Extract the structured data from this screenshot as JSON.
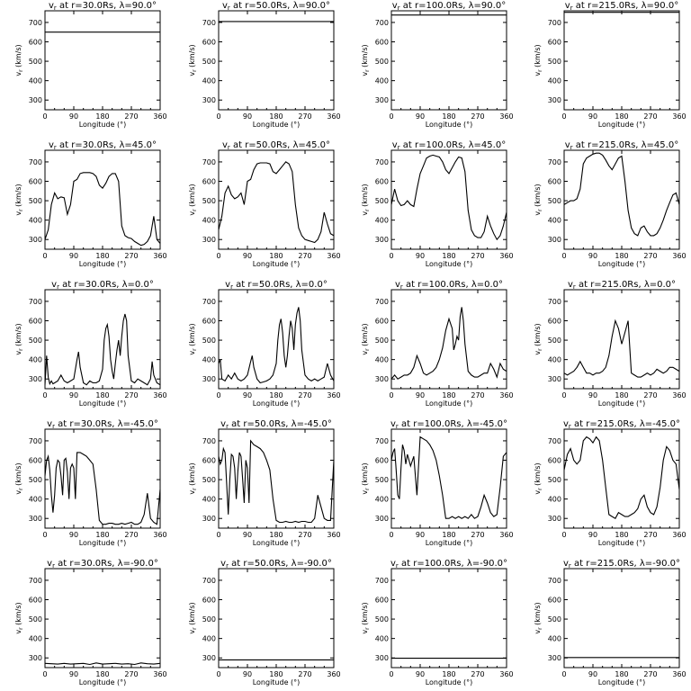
{
  "chart_data": {
    "type": "line",
    "layout": "5 rows x 4 columns of panels",
    "title_template": "v_r at r={r}Rs, λ={lat}°",
    "xlabel": "Longitude (°)",
    "ylabel": "v_r (km/s)",
    "xlim": [
      0,
      360
    ],
    "ylim": [
      250,
      760
    ],
    "xticks": [
      "0",
      "90",
      "180",
      "270",
      "360"
    ],
    "yticks": [
      "300",
      "400",
      "500",
      "600",
      "700"
    ],
    "line_color": "#000000",
    "grid": false,
    "columns_r": [
      "30.0",
      "50.0",
      "100.0",
      "215.0"
    ],
    "rows_lat": [
      "90.0",
      "45.0",
      "0.0",
      "-45.0",
      "-90.0"
    ],
    "panels": [
      {
        "title": "v_r at r=30.0Rs, λ=90.0°",
        "r": "30.0",
        "lat": "90.0",
        "x": [
          0,
          360
        ],
        "y": [
          650,
          650
        ]
      },
      {
        "title": "v_r at r=50.0Rs, λ=90.0°",
        "r": "50.0",
        "lat": "90.0",
        "x": [
          0,
          360
        ],
        "y": [
          705,
          705
        ]
      },
      {
        "title": "v_r at r=100.0Rs, λ=90.0°",
        "r": "100.0",
        "lat": "90.0",
        "x": [
          0,
          360
        ],
        "y": [
          738,
          738
        ]
      },
      {
        "title": "v_r at r=215.0Rs, λ=90.0°",
        "r": "215.0",
        "lat": "90.0",
        "x": [
          0,
          360
        ],
        "y": [
          752,
          752
        ]
      },
      {
        "title": "v_r at r=30.0Rs, λ=45.0°",
        "r": "30.0",
        "lat": "45.0",
        "x": [
          0,
          10,
          20,
          30,
          40,
          50,
          60,
          70,
          80,
          90,
          100,
          110,
          120,
          130,
          140,
          150,
          160,
          170,
          180,
          190,
          200,
          210,
          220,
          230,
          240,
          250,
          260,
          270,
          280,
          290,
          300,
          310,
          320,
          330,
          340,
          350,
          360
        ],
        "y": [
          300,
          350,
          480,
          540,
          510,
          520,
          515,
          430,
          480,
          600,
          610,
          640,
          645,
          645,
          645,
          640,
          625,
          580,
          565,
          590,
          625,
          640,
          640,
          600,
          370,
          320,
          310,
          305,
          290,
          280,
          270,
          275,
          290,
          320,
          420,
          300,
          280
        ]
      },
      {
        "title": "v_r at r=50.0Rs, λ=45.0°",
        "r": "50.0",
        "lat": "45.0",
        "x": [
          0,
          10,
          20,
          30,
          40,
          50,
          60,
          70,
          80,
          90,
          100,
          110,
          120,
          130,
          140,
          150,
          160,
          170,
          180,
          190,
          200,
          210,
          220,
          230,
          240,
          250,
          260,
          270,
          280,
          290,
          300,
          310,
          320,
          330,
          340,
          350,
          360
        ],
        "y": [
          350,
          420,
          540,
          575,
          530,
          510,
          520,
          540,
          480,
          600,
          610,
          660,
          690,
          695,
          695,
          695,
          690,
          650,
          640,
          660,
          680,
          700,
          690,
          650,
          480,
          360,
          320,
          300,
          295,
          290,
          285,
          300,
          340,
          440,
          380,
          330,
          320
        ]
      },
      {
        "title": "v_r at r=100.0Rs, λ=45.0°",
        "r": "100.0",
        "lat": "45.0",
        "x": [
          0,
          10,
          20,
          30,
          40,
          50,
          60,
          70,
          80,
          90,
          100,
          110,
          120,
          130,
          140,
          150,
          160,
          170,
          180,
          190,
          200,
          210,
          220,
          230,
          240,
          250,
          260,
          270,
          280,
          290,
          300,
          310,
          320,
          330,
          340,
          350,
          360
        ],
        "y": [
          480,
          560,
          500,
          475,
          480,
          500,
          480,
          470,
          560,
          640,
          680,
          720,
          730,
          735,
          730,
          725,
          700,
          660,
          640,
          670,
          700,
          725,
          720,
          650,
          450,
          350,
          320,
          310,
          310,
          340,
          420,
          370,
          330,
          300,
          320,
          370,
          440
        ]
      },
      {
        "title": "v_r at r=215.0Rs, λ=45.0°",
        "r": "215.0",
        "lat": "45.0",
        "x": [
          0,
          10,
          20,
          30,
          40,
          50,
          60,
          70,
          80,
          90,
          100,
          110,
          120,
          130,
          140,
          150,
          160,
          170,
          180,
          190,
          200,
          210,
          220,
          230,
          240,
          250,
          260,
          270,
          280,
          290,
          300,
          310,
          320,
          330,
          340,
          350,
          360
        ],
        "y": [
          480,
          490,
          500,
          500,
          510,
          560,
          690,
          720,
          730,
          740,
          745,
          745,
          735,
          710,
          680,
          660,
          690,
          720,
          730,
          600,
          450,
          360,
          330,
          320,
          360,
          370,
          340,
          320,
          320,
          330,
          360,
          400,
          450,
          490,
          530,
          540,
          480
        ]
      },
      {
        "title": "v_r at r=30.0Rs, λ=0.0°",
        "r": "30.0",
        "lat": "0.0",
        "x": [
          0,
          5,
          10,
          15,
          20,
          25,
          30,
          40,
          50,
          60,
          70,
          80,
          90,
          100,
          105,
          110,
          120,
          130,
          140,
          150,
          160,
          170,
          180,
          185,
          190,
          195,
          200,
          205,
          210,
          215,
          220,
          225,
          230,
          235,
          240,
          245,
          250,
          255,
          260,
          270,
          280,
          290,
          300,
          310,
          320,
          330,
          335,
          340,
          350,
          360
        ],
        "y": [
          270,
          420,
          310,
          275,
          290,
          275,
          280,
          290,
          320,
          290,
          280,
          290,
          300,
          400,
          440,
          360,
          280,
          270,
          290,
          280,
          280,
          290,
          350,
          500,
          560,
          580,
          520,
          400,
          340,
          300,
          380,
          450,
          500,
          420,
          520,
          600,
          635,
          600,
          420,
          290,
          280,
          300,
          290,
          280,
          270,
          300,
          390,
          320,
          280,
          270
        ]
      },
      {
        "title": "v_r at r=50.0Rs, λ=0.0°",
        "r": "50.0",
        "lat": "0.0",
        "x": [
          0,
          5,
          10,
          20,
          30,
          40,
          50,
          60,
          70,
          80,
          90,
          100,
          105,
          110,
          120,
          130,
          140,
          150,
          160,
          170,
          180,
          185,
          190,
          195,
          200,
          205,
          210,
          215,
          220,
          225,
          230,
          235,
          240,
          245,
          250,
          255,
          260,
          270,
          280,
          290,
          300,
          310,
          320,
          330,
          340,
          350,
          360
        ],
        "y": [
          380,
          400,
          300,
          290,
          320,
          300,
          330,
          300,
          290,
          300,
          320,
          390,
          420,
          360,
          300,
          280,
          285,
          290,
          300,
          320,
          380,
          500,
          580,
          610,
          540,
          420,
          360,
          420,
          520,
          600,
          560,
          450,
          580,
          640,
          670,
          600,
          450,
          320,
          300,
          290,
          300,
          290,
          300,
          310,
          380,
          320,
          290
        ]
      },
      {
        "title": "v_r at r=100.0Rs, λ=0.0°",
        "r": "100.0",
        "lat": "0.0",
        "x": [
          0,
          10,
          20,
          30,
          40,
          50,
          60,
          70,
          80,
          90,
          100,
          110,
          120,
          130,
          140,
          150,
          160,
          170,
          180,
          190,
          195,
          200,
          205,
          210,
          215,
          220,
          225,
          230,
          240,
          250,
          260,
          270,
          280,
          290,
          300,
          310,
          320,
          330,
          340,
          350,
          360
        ],
        "y": [
          300,
          320,
          300,
          310,
          320,
          320,
          330,
          360,
          420,
          380,
          330,
          320,
          330,
          340,
          360,
          400,
          460,
          550,
          610,
          560,
          450,
          480,
          520,
          500,
          620,
          670,
          600,
          480,
          340,
          320,
          310,
          310,
          320,
          330,
          330,
          380,
          350,
          310,
          380,
          350,
          340
        ]
      },
      {
        "title": "v_r at r=215.0Rs, λ=0.0°",
        "r": "215.0",
        "lat": "0.0",
        "x": [
          0,
          10,
          20,
          30,
          40,
          50,
          60,
          70,
          80,
          90,
          100,
          110,
          120,
          130,
          140,
          150,
          160,
          170,
          180,
          190,
          200,
          210,
          220,
          230,
          240,
          250,
          260,
          270,
          280,
          290,
          300,
          310,
          320,
          330,
          340,
          350,
          360
        ],
        "y": [
          330,
          320,
          330,
          340,
          360,
          390,
          360,
          330,
          330,
          320,
          330,
          330,
          340,
          360,
          420,
          520,
          600,
          560,
          480,
          540,
          600,
          330,
          320,
          310,
          310,
          320,
          330,
          320,
          330,
          350,
          340,
          330,
          340,
          360,
          360,
          350,
          340
        ]
      },
      {
        "title": "v_r at r=30.0Rs, λ=-45.0°",
        "r": "30.0",
        "lat": "-45.0",
        "x": [
          0,
          5,
          10,
          15,
          20,
          25,
          30,
          35,
          40,
          45,
          50,
          55,
          60,
          65,
          70,
          75,
          80,
          85,
          90,
          95,
          100,
          110,
          120,
          130,
          140,
          150,
          160,
          170,
          180,
          190,
          200,
          210,
          220,
          230,
          240,
          250,
          260,
          270,
          280,
          290,
          300,
          310,
          320,
          330,
          340,
          350,
          360
        ],
        "y": [
          520,
          600,
          620,
          550,
          420,
          330,
          420,
          560,
          600,
          590,
          520,
          420,
          600,
          610,
          540,
          400,
          560,
          580,
          560,
          400,
          640,
          640,
          630,
          620,
          600,
          580,
          450,
          290,
          270,
          270,
          275,
          275,
          270,
          270,
          275,
          270,
          275,
          280,
          270,
          270,
          280,
          320,
          430,
          300,
          280,
          270,
          450
        ]
      },
      {
        "title": "v_r at r=50.0Rs, λ=-45.0°",
        "r": "50.0",
        "lat": "-45.0",
        "x": [
          0,
          5,
          10,
          15,
          20,
          25,
          30,
          35,
          40,
          45,
          50,
          55,
          60,
          65,
          70,
          75,
          80,
          85,
          90,
          95,
          100,
          110,
          120,
          130,
          140,
          150,
          160,
          170,
          180,
          190,
          200,
          210,
          220,
          230,
          240,
          250,
          260,
          270,
          280,
          290,
          300,
          310,
          320,
          330,
          340,
          350,
          360
        ],
        "y": [
          620,
          580,
          600,
          660,
          640,
          480,
          320,
          500,
          630,
          620,
          560,
          400,
          540,
          640,
          620,
          500,
          380,
          600,
          560,
          380,
          700,
          680,
          670,
          660,
          640,
          600,
          550,
          400,
          290,
          280,
          280,
          285,
          280,
          280,
          285,
          280,
          285,
          285,
          280,
          280,
          300,
          420,
          360,
          300,
          290,
          290,
          600
        ]
      },
      {
        "title": "v_r at r=100.0Rs, λ=-45.0°",
        "r": "100.0",
        "lat": "-45.0",
        "x": [
          0,
          5,
          10,
          15,
          20,
          25,
          30,
          35,
          40,
          45,
          50,
          55,
          60,
          70,
          80,
          90,
          100,
          110,
          120,
          130,
          140,
          150,
          160,
          170,
          180,
          190,
          200,
          210,
          220,
          230,
          240,
          250,
          260,
          270,
          280,
          290,
          300,
          310,
          320,
          330,
          340,
          350,
          360
        ],
        "y": [
          600,
          640,
          660,
          550,
          420,
          400,
          560,
          680,
          650,
          580,
          630,
          600,
          570,
          620,
          420,
          720,
          710,
          700,
          680,
          650,
          600,
          520,
          420,
          300,
          300,
          310,
          300,
          310,
          300,
          310,
          300,
          320,
          300,
          310,
          360,
          420,
          380,
          330,
          310,
          320,
          460,
          620,
          640
        ]
      },
      {
        "title": "v_r at r=215.0Rs, λ=-45.0°",
        "r": "215.0",
        "lat": "-45.0",
        "x": [
          0,
          10,
          20,
          30,
          40,
          50,
          60,
          70,
          80,
          90,
          100,
          110,
          120,
          130,
          140,
          150,
          160,
          170,
          180,
          190,
          200,
          210,
          220,
          230,
          240,
          250,
          260,
          270,
          280,
          290,
          300,
          310,
          320,
          330,
          340,
          350,
          360
        ],
        "y": [
          550,
          630,
          660,
          600,
          580,
          600,
          700,
          720,
          710,
          690,
          720,
          700,
          600,
          460,
          320,
          310,
          300,
          330,
          320,
          310,
          310,
          320,
          330,
          350,
          400,
          420,
          360,
          330,
          320,
          360,
          460,
          600,
          670,
          650,
          600,
          580,
          450
        ]
      },
      {
        "title": "v_r at r=30.0Rs, λ=-90.0°",
        "r": "30.0",
        "lat": "-90.0",
        "x": [
          0,
          20,
          40,
          60,
          80,
          100,
          120,
          140,
          160,
          180,
          200,
          220,
          240,
          260,
          280,
          300,
          320,
          340,
          360
        ],
        "y": [
          272,
          270,
          268,
          272,
          268,
          270,
          272,
          266,
          274,
          268,
          270,
          272,
          268,
          270,
          266,
          274,
          270,
          268,
          272
        ]
      },
      {
        "title": "v_r at r=50.0Rs, λ=-90.0°",
        "r": "50.0",
        "lat": "-90.0",
        "x": [
          0,
          360
        ],
        "y": [
          290,
          290
        ]
      },
      {
        "title": "v_r at r=100.0Rs, λ=-90.0°",
        "r": "100.0",
        "lat": "-90.0",
        "x": [
          0,
          360
        ],
        "y": [
          298,
          298
        ]
      },
      {
        "title": "v_r at r=215.0Rs, λ=-90.0°",
        "r": "215.0",
        "lat": "-90.0",
        "x": [
          0,
          360
        ],
        "y": [
          302,
          302
        ]
      }
    ]
  }
}
